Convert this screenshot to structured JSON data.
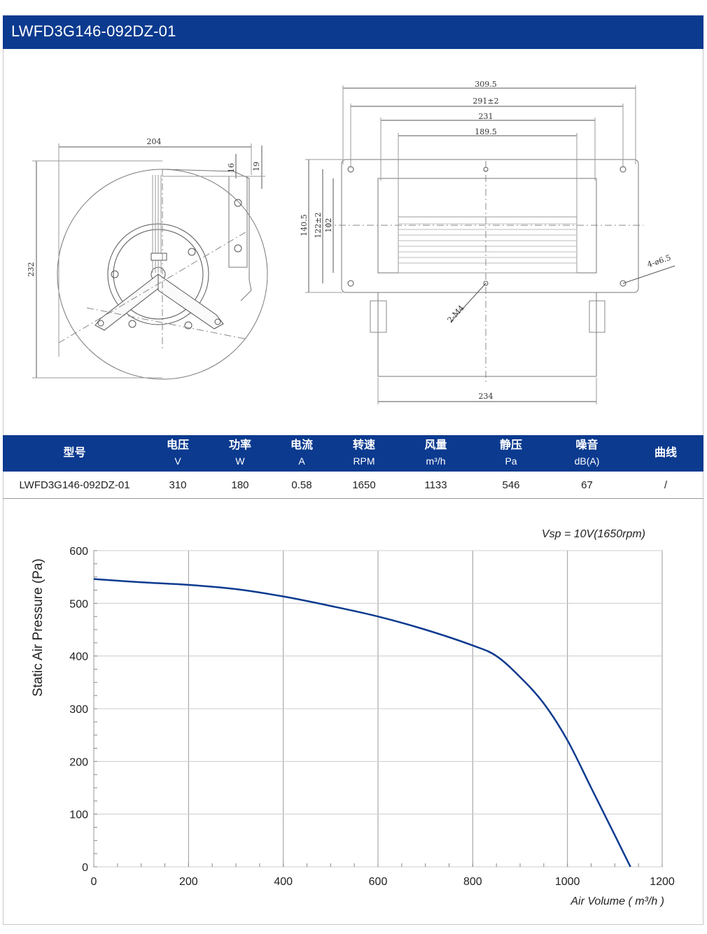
{
  "page": {
    "title": "LWFD3G146-092DZ-01"
  },
  "drawing": {
    "left_dims": {
      "width": "204",
      "height": "232",
      "tab1": "16",
      "tab2": "19"
    },
    "right_dims": {
      "w1": "309.5",
      "w2": "291±2",
      "w3": "231",
      "w4": "189.5",
      "h1": "140.5",
      "h2": "122±2",
      "h3": "102",
      "holes": "4-⌀6.5",
      "screws": "2-M4",
      "bottom": "234"
    }
  },
  "spec_table": {
    "headers": [
      {
        "label": "型号",
        "unit": ""
      },
      {
        "label": "电压",
        "unit": "V"
      },
      {
        "label": "功率",
        "unit": "W"
      },
      {
        "label": "电流",
        "unit": "A"
      },
      {
        "label": "转速",
        "unit": "RPM"
      },
      {
        "label": "风量",
        "unit": "m³/h"
      },
      {
        "label": "静压",
        "unit": "Pa"
      },
      {
        "label": "噪音",
        "unit": "dB(A)"
      },
      {
        "label": "曲线",
        "unit": ""
      }
    ],
    "row": [
      "LWFD3G146-092DZ-01",
      "310",
      "180",
      "0.58",
      "1650",
      "1133",
      "546",
      "67",
      "/"
    ]
  },
  "chart_data": {
    "type": "line",
    "annotation": "Vsp = 10V(1650rpm)",
    "xlabel": "Air Volume ( m³/h )",
    "ylabel": "Static Air Pressure  (Pa)",
    "xlim": [
      0,
      1200
    ],
    "ylim": [
      0,
      600
    ],
    "x_ticks": [
      0,
      200,
      400,
      600,
      800,
      1000,
      1200
    ],
    "y_ticks": [
      0,
      100,
      200,
      300,
      400,
      500,
      600
    ],
    "grid": true,
    "line_color": "#0b3a8f",
    "series": [
      {
        "x": [
          0,
          100,
          200,
          300,
          400,
          500,
          600,
          700,
          800,
          850,
          900,
          950,
          1000,
          1050,
          1100,
          1133
        ],
        "values": [
          546,
          540,
          535,
          527,
          513,
          495,
          475,
          450,
          420,
          400,
          360,
          310,
          240,
          150,
          60,
          0
        ]
      }
    ]
  }
}
